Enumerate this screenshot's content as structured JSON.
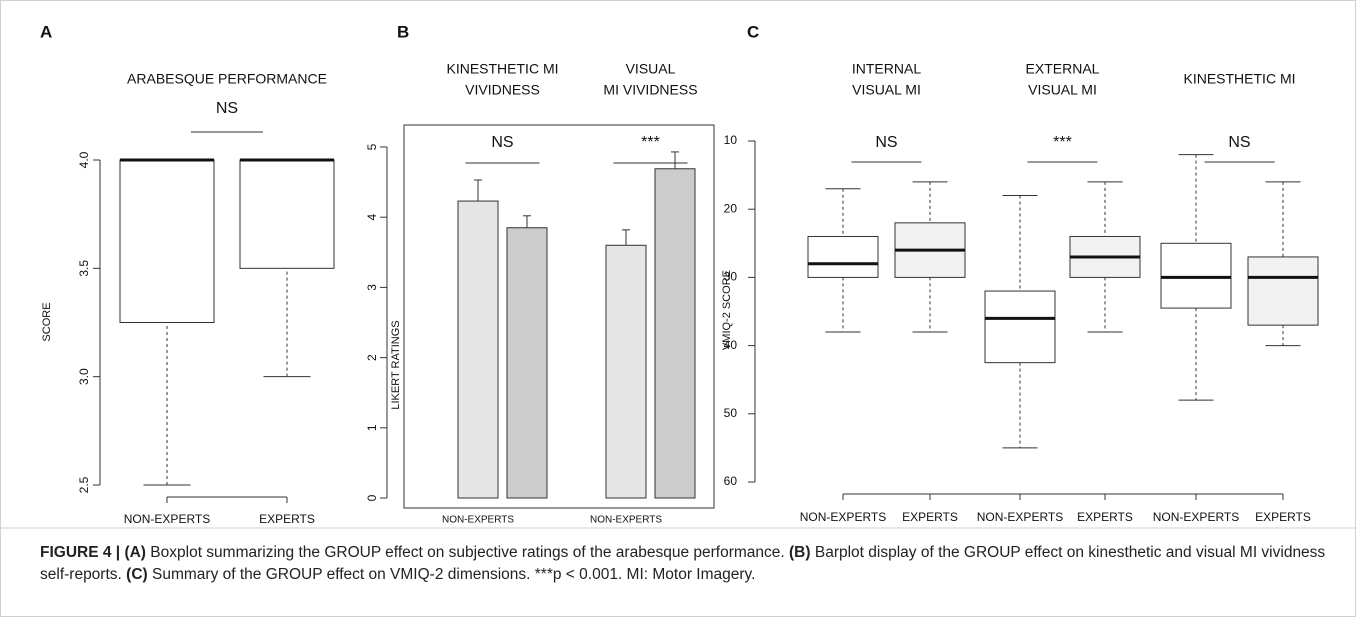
{
  "chart_data": [
    {
      "type": "box",
      "panel": "A",
      "ylabel": "SCORE",
      "categories": [
        "NON-EXPERTS",
        "EXPERTS"
      ],
      "boxes": [
        {
          "min": 2.5,
          "q1": 3.25,
          "median": 4,
          "q3": 4,
          "max": 4
        },
        {
          "min": 3.0,
          "q1": 3.5,
          "median": 4,
          "q3": 4,
          "max": 4
        }
      ],
      "colors": [
        "#ffffff",
        "#ffffff"
      ],
      "groups": [
        {
          "title": [
            "ARABESQUE PERFORMANCE"
          ],
          "annotation": "NS"
        }
      ],
      "ylim": [
        2.5,
        4
      ],
      "yticks": [
        2.5,
        {
          "value": 3,
          "label": "3.0"
        },
        3.5,
        {
          "value": 4,
          "label": "4.0"
        }
      ]
    },
    {
      "type": "bar",
      "panel": "B",
      "ylabel": "LIKERT RATINGS",
      "categories": [
        "NON-EXPERTS",
        null,
        "NON-EXPERTS",
        null
      ],
      "values": [
        4.23,
        3.85,
        3.6,
        4.69
      ],
      "errors": [
        0.3,
        0.17,
        0.22,
        0.24
      ],
      "colors": [
        "#e6e6e6",
        "#cccccc",
        "#e6e6e6",
        "#cccccc"
      ],
      "groups": [
        {
          "title": [
            "KINESTHETIC MI",
            "VIVIDNESS"
          ],
          "annotation": "NS"
        },
        {
          "title": [
            "VISUAL",
            "MI VIVIDNESS"
          ],
          "annotation": "***"
        }
      ],
      "ylim": [
        0,
        5
      ],
      "yticks": [
        0,
        1,
        2,
        3,
        4,
        5
      ]
    },
    {
      "type": "box",
      "panel": "C",
      "ylabel": "VMIQ-2 SCORE",
      "y_reversed": true,
      "categories": [
        "NON-EXPERTS",
        "EXPERTS",
        "NON-EXPERTS",
        "EXPERTS",
        "NON-EXPERTS",
        "EXPERTS"
      ],
      "boxes": [
        {
          "min": 17,
          "q1": 24,
          "median": 28,
          "q3": 30,
          "max": 38
        },
        {
          "min": 16,
          "q1": 22,
          "median": 26,
          "q3": 30,
          "max": 38
        },
        {
          "min": 18,
          "q1": 32,
          "median": 36,
          "q3": 42.5,
          "max": 55
        },
        {
          "min": 16,
          "q1": 24,
          "median": 27,
          "q3": 30,
          "max": 38
        },
        {
          "min": 12,
          "q1": 25,
          "median": 30,
          "q3": 34.5,
          "max": 48
        },
        {
          "min": 16,
          "q1": 27,
          "median": 30,
          "q3": 37,
          "max": 40
        }
      ],
      "colors": [
        "#ffffff",
        "#f2f2f2",
        "#ffffff",
        "#f2f2f2",
        "#ffffff",
        "#f2f2f2"
      ],
      "groups": [
        {
          "title": [
            "INTERNAL",
            "VISUAL MI"
          ],
          "annotation": "NS"
        },
        {
          "title": [
            "EXTERNAL",
            "VISUAL MI"
          ],
          "annotation": "***"
        },
        {
          "title": [
            "KINESTHETIC MI"
          ],
          "annotation": "NS"
        }
      ],
      "ylim": [
        10,
        60
      ],
      "yticks": [
        10,
        20,
        30,
        40,
        50,
        60
      ]
    }
  ],
  "caption": {
    "label": "FIGURE 4 |",
    "a_tag": "(A)",
    "a_text": "Boxplot summarizing the GROUP effect on subjective ratings of the arabesque performance.",
    "b_tag": "(B)",
    "b_text": "Barplot display of the GROUP effect on kinesthetic and visual MI vividness self-reports.",
    "c_tag": "(C)",
    "c_text": "Summary of the GROUP effect on VMIQ-2 dimensions. ***p < 0.001. MI: Motor Imagery."
  }
}
